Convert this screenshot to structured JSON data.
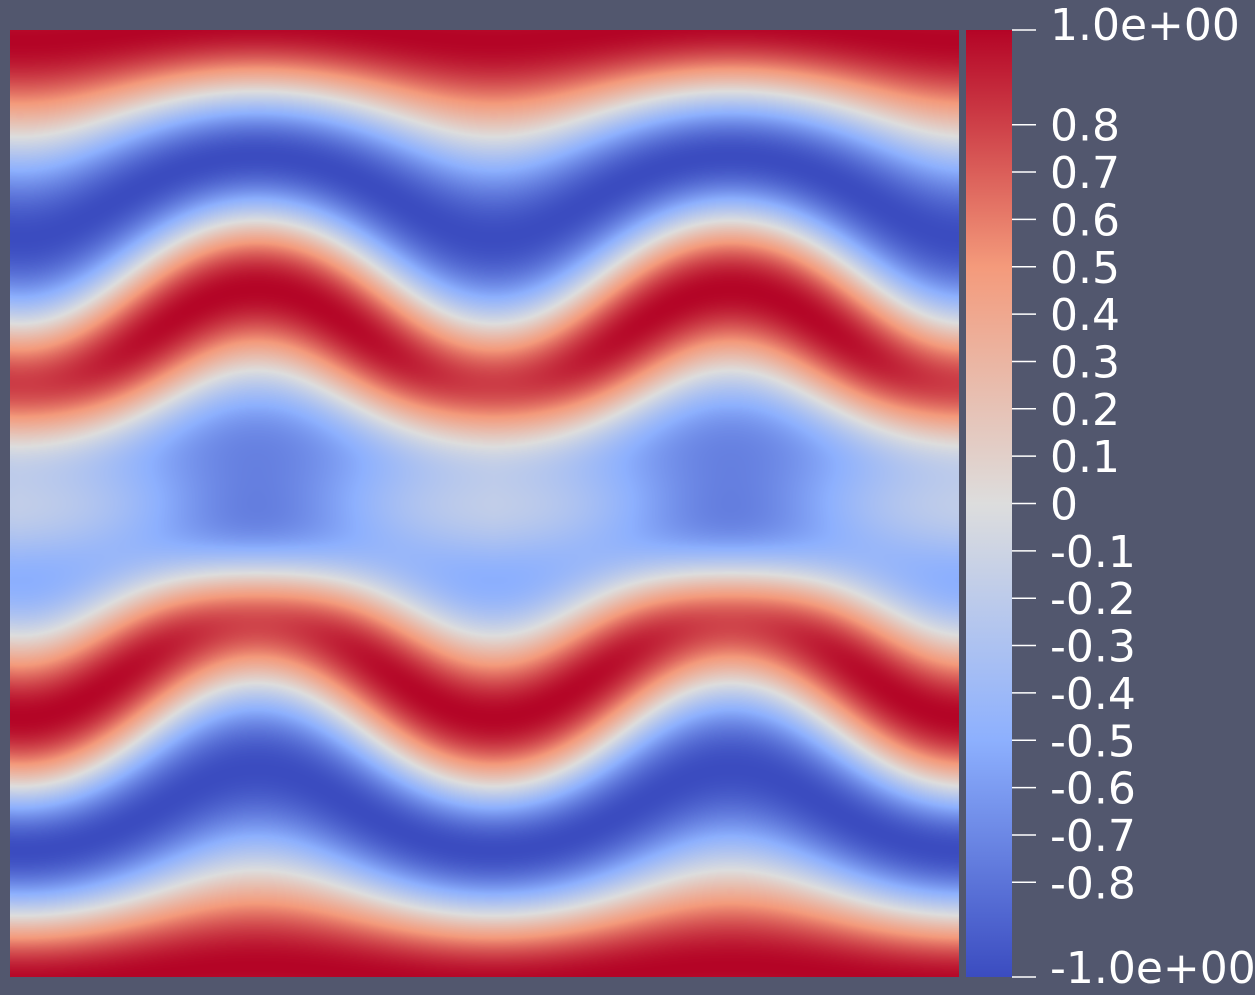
{
  "background_color": "#52576e",
  "chart_data": {
    "type": "heatmap",
    "title": "",
    "xlabel": "",
    "ylabel": "",
    "description_of_field": "scalar field rendered with diverging cool-to-warm colormap",
    "colormap": {
      "name": "cool-to-warm",
      "stops": [
        {
          "value": -1.0,
          "color": "#3b4cc0"
        },
        {
          "value": -0.5,
          "color": "#8db0fe"
        },
        {
          "value": 0.0,
          "color": "#dddddd"
        },
        {
          "value": 0.5,
          "color": "#f49a7b"
        },
        {
          "value": 1.0,
          "color": "#b40426"
        }
      ]
    },
    "range": [
      -1.0,
      1.0
    ],
    "colorbar": {
      "min_label": "-1.0e+00",
      "max_label": "1.0e+00",
      "ticks": [
        {
          "value": 1.0,
          "label": "1.0e+00"
        },
        {
          "value": 0.8,
          "label": "0.8"
        },
        {
          "value": 0.7,
          "label": "0.7"
        },
        {
          "value": 0.6,
          "label": "0.6"
        },
        {
          "value": 0.5,
          "label": "0.5"
        },
        {
          "value": 0.4,
          "label": "0.4"
        },
        {
          "value": 0.3,
          "label": "0.3"
        },
        {
          "value": 0.2,
          "label": "0.2"
        },
        {
          "value": 0.1,
          "label": "0.1"
        },
        {
          "value": 0.0,
          "label": "0"
        },
        {
          "value": -0.1,
          "label": "-0.1"
        },
        {
          "value": -0.2,
          "label": "-0.2"
        },
        {
          "value": -0.3,
          "label": "-0.3"
        },
        {
          "value": -0.4,
          "label": "-0.4"
        },
        {
          "value": -0.5,
          "label": "-0.5"
        },
        {
          "value": -0.6,
          "label": "-0.6"
        },
        {
          "value": -0.7,
          "label": "-0.7"
        },
        {
          "value": -0.8,
          "label": "-0.8"
        },
        {
          "value": -1.0,
          "label": "-1.0e+00"
        }
      ]
    },
    "field_features": [
      {
        "name": "band-top-red",
        "value": 1.0
      },
      {
        "name": "band-upper-blue",
        "value": -1.0
      },
      {
        "name": "band-upper-red-wavy",
        "value": 1.0
      },
      {
        "name": "vortex-left-blue",
        "value": -0.75
      },
      {
        "name": "vortex-right-blue",
        "value": -0.75
      },
      {
        "name": "band-lower-red-wavy",
        "value": 1.0
      },
      {
        "name": "band-lower-blue",
        "value": -1.0
      },
      {
        "name": "band-bottom-red",
        "value": 1.0
      }
    ]
  }
}
